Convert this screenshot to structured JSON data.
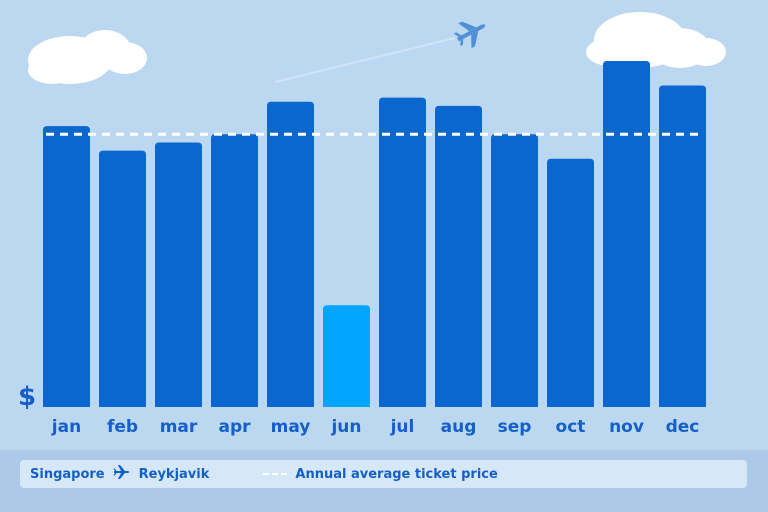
{
  "chart_data": {
    "type": "bar",
    "categories": [
      "jan",
      "feb",
      "mar",
      "apr",
      "may",
      "jun",
      "jul",
      "aug",
      "sep",
      "oct",
      "nov",
      "dec"
    ],
    "values": [
      69,
      63,
      65,
      67,
      75,
      25,
      76,
      74,
      67,
      61,
      85,
      79
    ],
    "highlight": "jun",
    "ylim": [
      0,
      100
    ],
    "ylabel": "$",
    "average": 67,
    "grid": false,
    "legend_position": "bottom",
    "colors": {
      "bar": "#0a67d0",
      "highlight": "#00a6ff",
      "average_line": "#ffffff",
      "text": "#1560c8"
    }
  },
  "legend": {
    "origin": "Singapore",
    "destination": "Reykjavik",
    "average_label": "Annual average ticket price"
  },
  "icons": {
    "route": "airplane-icon",
    "sky": "airplane-icon",
    "clouds": "cloud-icon"
  }
}
